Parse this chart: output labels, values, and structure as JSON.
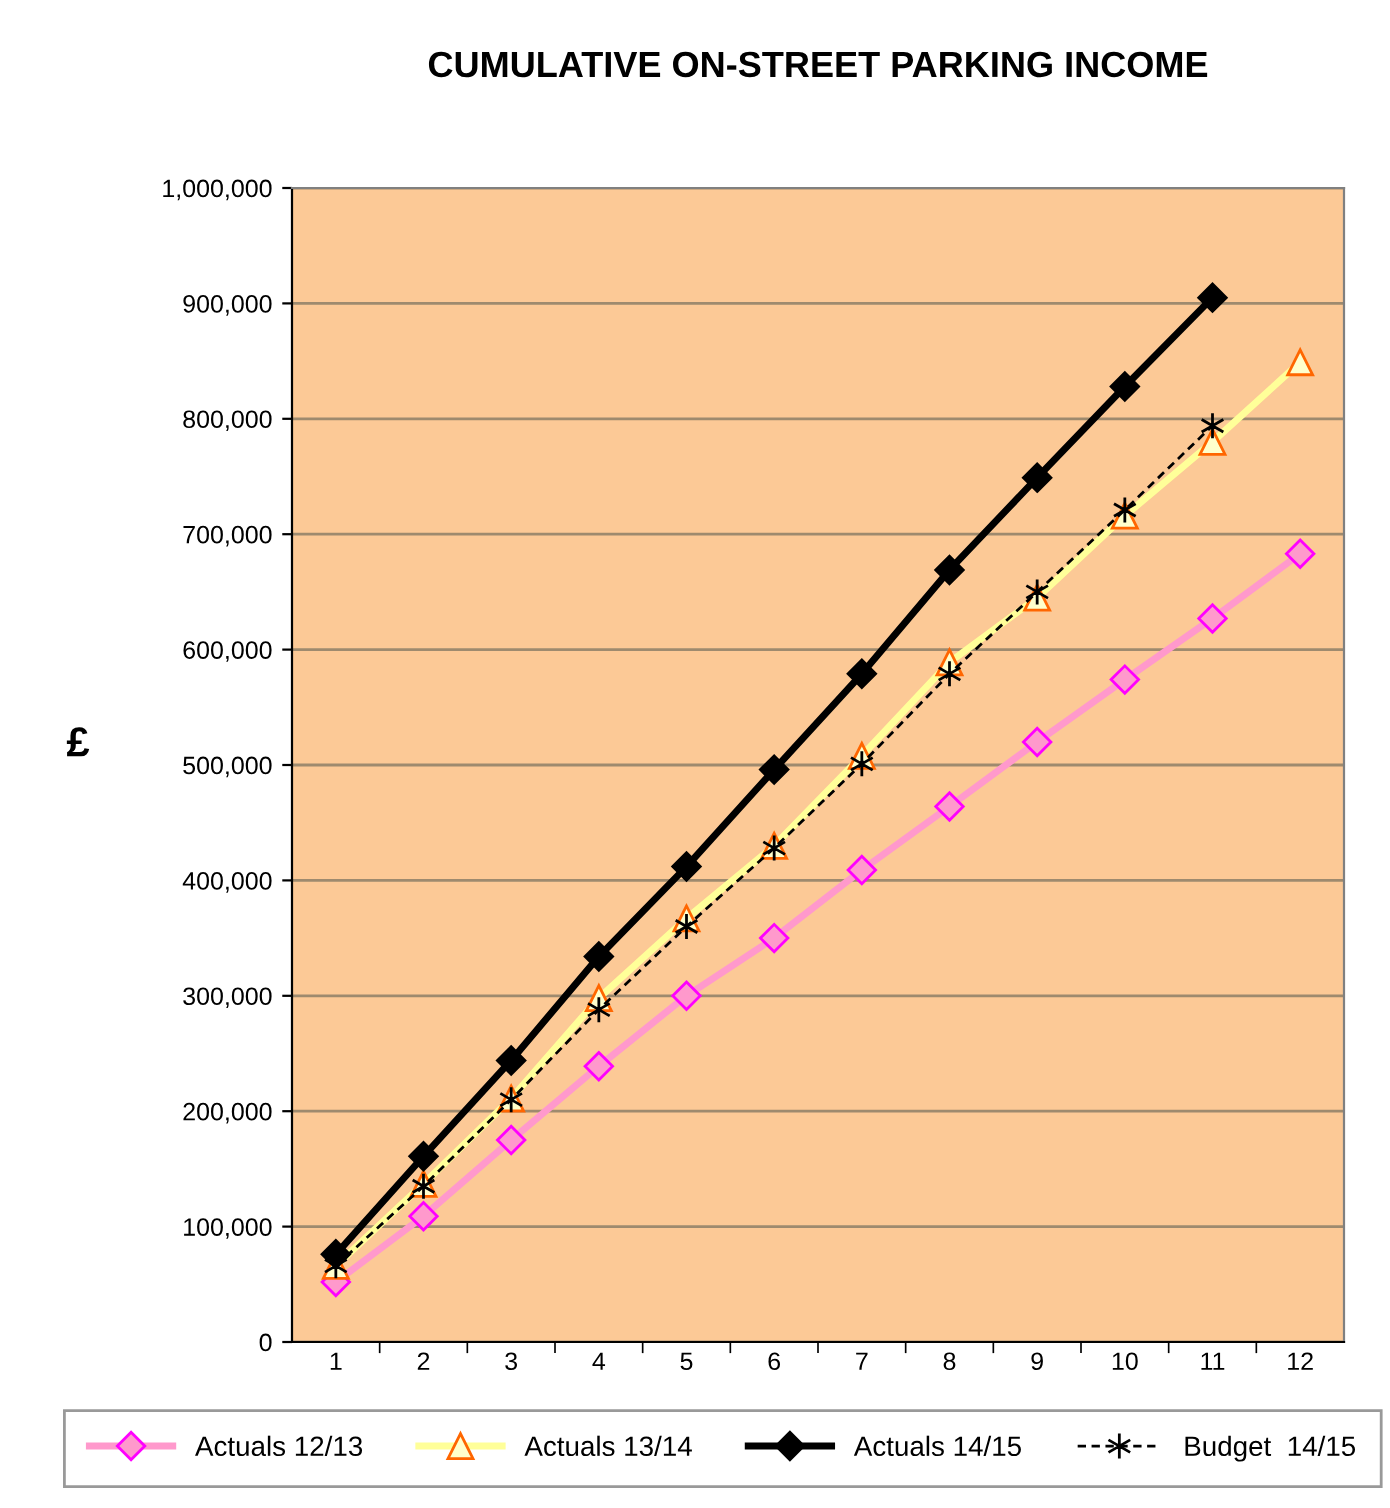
{
  "chart_data": {
    "type": "line",
    "title": "CUMULATIVE ON-STREET PARKING INCOME",
    "ylabel": "£",
    "categories": [
      "1",
      "2",
      "3",
      "4",
      "5",
      "6",
      "7",
      "8",
      "9",
      "10",
      "11",
      "12"
    ],
    "ylim": [
      0,
      1000000
    ],
    "yticks": [
      {
        "value": 0,
        "label": "0"
      },
      {
        "value": 100000,
        "label": "100,000"
      },
      {
        "value": 200000,
        "label": "200,000"
      },
      {
        "value": 300000,
        "label": "300,000"
      },
      {
        "value": 400000,
        "label": "400,000"
      },
      {
        "value": 500000,
        "label": "500,000"
      },
      {
        "value": 600000,
        "label": "600,000"
      },
      {
        "value": 700000,
        "label": "700,000"
      },
      {
        "value": 800000,
        "label": "800,000"
      },
      {
        "value": 900000,
        "label": "900,000"
      },
      {
        "value": 1000000,
        "label": "1,000,000"
      }
    ],
    "grid": "y",
    "legend": "bottom",
    "series": [
      {
        "name": "Actuals 12/13",
        "color": "#ff99cc",
        "marker": "diamond",
        "line_style": "solid",
        "values": [
          52000,
          109000,
          175000,
          239000,
          300000,
          350000,
          409000,
          464000,
          520000,
          574000,
          627000,
          683000
        ]
      },
      {
        "name": "Actuals 13/14",
        "color": "#ffff99",
        "marker": "triangle",
        "line_style": "solid",
        "values": [
          66000,
          137000,
          211000,
          298000,
          367000,
          430000,
          508000,
          589000,
          645000,
          716000,
          780000,
          849000
        ]
      },
      {
        "name": "Actuals 14/15",
        "color": "#000000",
        "marker": "diamond",
        "line_style": "solid",
        "values": [
          76000,
          161000,
          244000,
          334000,
          412000,
          496000,
          579000,
          669000,
          749000,
          828000,
          905000,
          null
        ]
      },
      {
        "name": "Budget  14/15",
        "color": "#000000",
        "marker": "cross",
        "line_style": "dashed",
        "values": [
          66000,
          135000,
          210000,
          288000,
          360000,
          428000,
          501000,
          579000,
          650000,
          721000,
          794000,
          null
        ]
      }
    ]
  }
}
